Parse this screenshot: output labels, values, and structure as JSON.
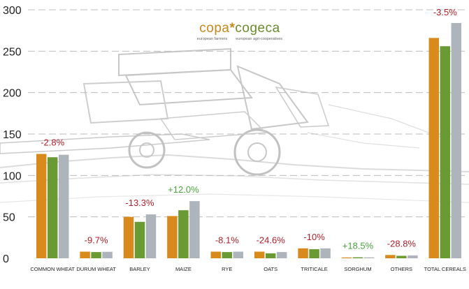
{
  "logo": {
    "word1": "copa",
    "separator": "*",
    "word2": "cogeca",
    "tagline1": "european farmers",
    "tagline2": "european agri-cooperatives"
  },
  "colors": {
    "series1": "#d98a1c",
    "series2": "#6a9a33",
    "series3": "#aeb4bc",
    "negative_label": "#b0202a",
    "positive_label": "#4aa33c",
    "grid": "#bdbdbd",
    "axis_text": "#222222",
    "watermark": "#9a9a9a"
  },
  "chart_data": {
    "type": "bar",
    "categories": [
      "COMMON WHEAT",
      "DURUM WHEAT",
      "BARLEY",
      "MAIZE",
      "RYE",
      "OATS",
      "TRITICALE",
      "SORGHUM",
      "OTHERS",
      "TOTAL CEREALS"
    ],
    "series": [
      {
        "values": [
          126,
          8,
          50,
          51,
          8,
          8,
          12,
          1,
          4,
          266
        ]
      },
      {
        "values": [
          122,
          7.5,
          44,
          58,
          7.5,
          6,
          11,
          1.2,
          3,
          256
        ]
      },
      {
        "values": [
          125,
          7.8,
          53,
          69,
          8,
          7.5,
          12,
          1.1,
          3.5,
          284
        ]
      }
    ],
    "change_labels": [
      "-2.8%",
      "-9.7%",
      "-13.3%",
      "+12.0%",
      "-8.1%",
      "-24.6%",
      "-10%",
      "+18.5%",
      "-28.8%",
      "-3.5%"
    ],
    "change_positive": [
      false,
      false,
      false,
      true,
      false,
      false,
      false,
      true,
      false,
      false
    ],
    "ylim": [
      0,
      300
    ],
    "yticks": [
      0,
      50,
      100,
      150,
      200,
      250,
      300
    ],
    "grid": true,
    "xlabel": "",
    "ylabel": "",
    "title": ""
  }
}
